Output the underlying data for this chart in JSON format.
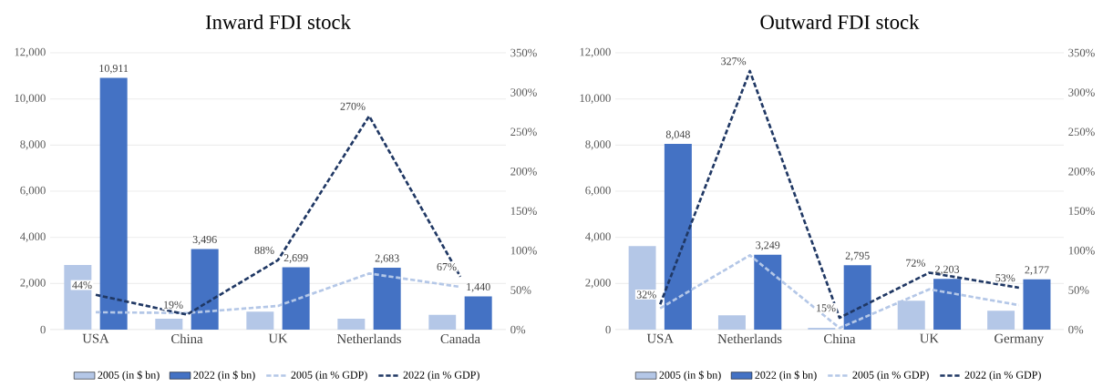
{
  "chart_data": [
    {
      "type": "bar",
      "title": "Inward FDI stock",
      "categories": [
        "USA",
        "China",
        "UK",
        "Netherlands",
        "Canada"
      ],
      "series": [
        {
          "name": "2005 (in $ bn)",
          "color": "#b4c7e7",
          "values": [
            2800,
            470,
            780,
            470,
            640
          ]
        },
        {
          "name": "2022 (in $ bn)",
          "color": "#4472c4",
          "values": [
            10911,
            3496,
            2699,
            2683,
            1440
          ],
          "value_labels": [
            "10,911",
            "3,496",
            "2,699",
            "2,683",
            "1,440"
          ]
        },
        {
          "name": "2005 (in % GDP)",
          "type": "line",
          "axis": "y2",
          "line_style": "dashed",
          "color": "#b4c7e7",
          "values": [
            22,
            21,
            30,
            71,
            54
          ]
        },
        {
          "name": "2022 (in % GDP)",
          "type": "line",
          "axis": "y2",
          "line_style": "dashed",
          "color": "#203864",
          "values": [
            44,
            19,
            88,
            270,
            67
          ],
          "value_labels": [
            "44%",
            "19%",
            "88%",
            "270%",
            "67%"
          ]
        }
      ],
      "ylim": [
        0,
        12000
      ],
      "yticks": [
        {
          "value": 0,
          "label": "0"
        },
        {
          "value": 2000,
          "label": "2,000"
        },
        {
          "value": 4000,
          "label": "4,000"
        },
        {
          "value": 6000,
          "label": "6,000"
        },
        {
          "value": 8000,
          "label": "8,000"
        },
        {
          "value": 10000,
          "label": "10,000"
        },
        {
          "value": 12000,
          "label": "12,000"
        }
      ],
      "y2lim": [
        0,
        350
      ],
      "y2ticks": [
        {
          "value": 0,
          "label": "0%"
        },
        {
          "value": 50,
          "label": "50%"
        },
        {
          "value": 100,
          "label": "100%"
        },
        {
          "value": 150,
          "label": "150%"
        },
        {
          "value": 200,
          "label": "200%"
        },
        {
          "value": 250,
          "label": "250%"
        },
        {
          "value": 300,
          "label": "300%"
        },
        {
          "value": 350,
          "label": "350%"
        }
      ],
      "grid": "y",
      "legend": "bottom",
      "marker": "none"
    },
    {
      "type": "bar",
      "title": "Outward FDI stock",
      "categories": [
        "USA",
        "Netherlands",
        "China",
        "UK",
        "Germany"
      ],
      "series": [
        {
          "name": "2005 (in $ bn)",
          "color": "#b4c7e7",
          "values": [
            3620,
            620,
            80,
            1250,
            820
          ]
        },
        {
          "name": "2022 (in $ bn)",
          "color": "#4472c4",
          "values": [
            8048,
            3249,
            2795,
            2203,
            2177
          ],
          "value_labels": [
            "8,048",
            "3,249",
            "2,795",
            "2,203",
            "2,177"
          ]
        },
        {
          "name": "2005 (in % GDP)",
          "type": "line",
          "axis": "y2",
          "line_style": "dashed",
          "color": "#b4c7e7",
          "values": [
            27,
            94,
            2,
            51,
            31
          ]
        },
        {
          "name": "2022 (in % GDP)",
          "type": "line",
          "axis": "y2",
          "line_style": "dashed",
          "color": "#203864",
          "values": [
            32,
            327,
            15,
            72,
            53
          ],
          "value_labels": [
            "32%",
            "327%",
            "15%",
            "72%",
            "53%"
          ]
        }
      ],
      "ylim": [
        0,
        12000
      ],
      "yticks": [
        {
          "value": 0,
          "label": "0"
        },
        {
          "value": 2000,
          "label": "2,000"
        },
        {
          "value": 4000,
          "label": "4,000"
        },
        {
          "value": 6000,
          "label": "6,000"
        },
        {
          "value": 8000,
          "label": "8,000"
        },
        {
          "value": 10000,
          "label": "10,000"
        },
        {
          "value": 12000,
          "label": "12,000"
        }
      ],
      "y2lim": [
        0,
        350
      ],
      "y2ticks": [
        {
          "value": 0,
          "label": "0%"
        },
        {
          "value": 50,
          "label": "50%"
        },
        {
          "value": 100,
          "label": "100%"
        },
        {
          "value": 150,
          "label": "150%"
        },
        {
          "value": 200,
          "label": "200%"
        },
        {
          "value": 250,
          "label": "250%"
        },
        {
          "value": 300,
          "label": "300%"
        },
        {
          "value": 350,
          "label": "350%"
        }
      ],
      "grid": "y",
      "legend": "bottom",
      "marker": "none"
    }
  ]
}
